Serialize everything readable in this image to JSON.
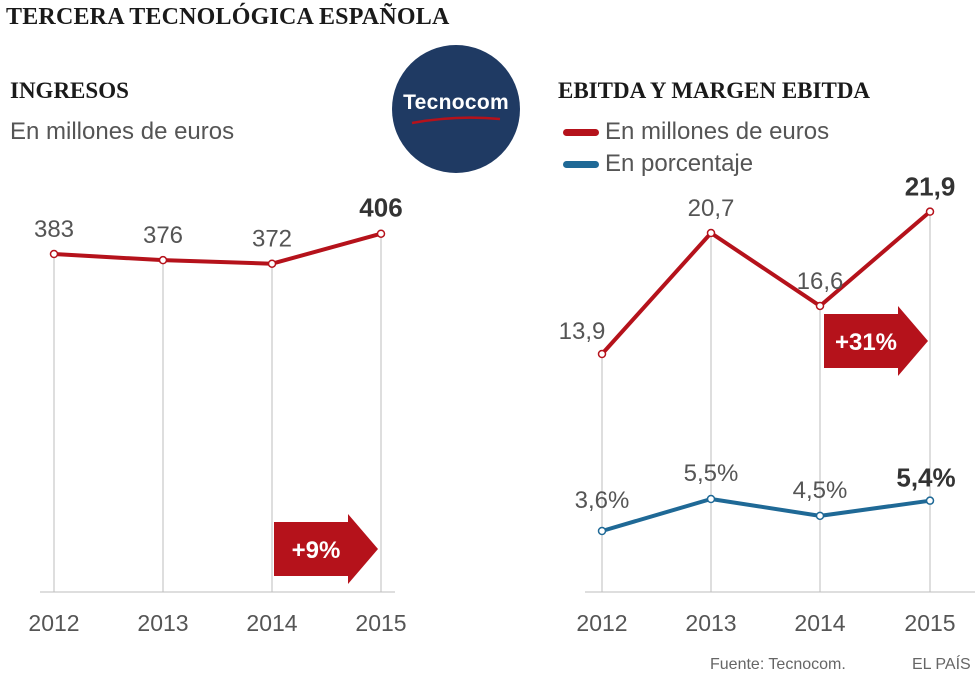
{
  "title": "TERCERA TECNOLÓGICA ESPAÑOLA",
  "logo": {
    "text": "Tecnocom",
    "color": "#1f3a63"
  },
  "colors": {
    "red": "#b5121b",
    "blue": "#1f6996",
    "grid": "#bdbdbd"
  },
  "chart_data": [
    {
      "type": "line",
      "title": "INGRESOS",
      "subtitle": "En millones de euros",
      "categories": [
        "2012",
        "2013",
        "2014",
        "2015"
      ],
      "series": [
        {
          "name": "Ingresos",
          "values": [
            383,
            376,
            372,
            406
          ],
          "labels": [
            "383",
            "376",
            "372",
            "406"
          ]
        }
      ],
      "annotation": "+9%",
      "ylim": [
        0,
        430
      ]
    },
    {
      "type": "line",
      "title": "EBITDA Y MARGEN EBITDA",
      "categories": [
        "2012",
        "2013",
        "2014",
        "2015"
      ],
      "series": [
        {
          "name": "En millones de euros",
          "values": [
            13.9,
            20.7,
            16.6,
            21.9
          ],
          "labels": [
            "13,9",
            "20,7",
            "16,6",
            "21,9"
          ]
        },
        {
          "name": "En porcentaje",
          "values": [
            3.6,
            5.5,
            4.5,
            5.4
          ],
          "labels": [
            "3,6%",
            "5,5%",
            "4,5%",
            "5,4%"
          ]
        }
      ],
      "annotation": "+31%"
    }
  ],
  "footer": {
    "source": "Fuente: Tecnocom.",
    "credit": "EL PAÍS"
  }
}
